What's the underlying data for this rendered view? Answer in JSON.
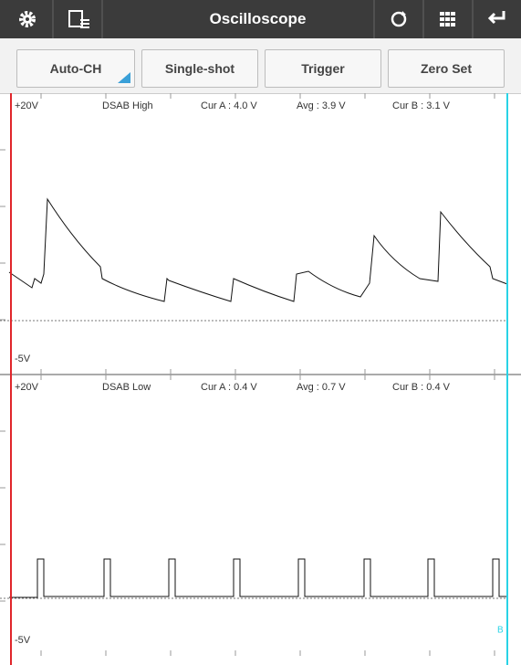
{
  "header": {
    "title": "Oscilloscope"
  },
  "buttons": [
    "Auto-CH",
    "Single-shot",
    "Trigger",
    "Zero Set"
  ],
  "panels": [
    {
      "top_label": "+20V",
      "bottom_label": "-5V",
      "channel": "DSAB High",
      "cur_a": "Cur A : 4.0 V",
      "avg": "Avg : 3.9 V",
      "cur_b": "Cur B : 3.1 V"
    },
    {
      "top_label": "+20V",
      "bottom_label": "-5V",
      "channel": "DSAB Low",
      "cur_a": "Cur A : 0.4 V",
      "avg": "Avg : 0.7 V",
      "cur_b": "Cur B : 0.4 V"
    }
  ],
  "cursor_b_marker": "B"
}
